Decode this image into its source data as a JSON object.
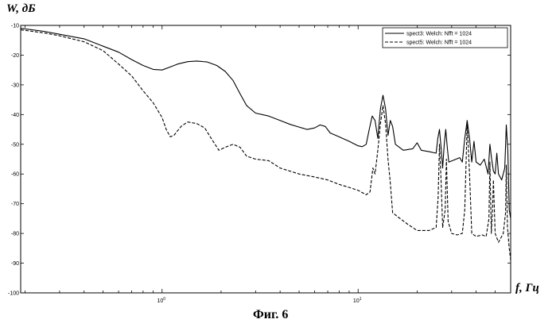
{
  "chart_data": {
    "type": "line",
    "ylabel": "W, дБ",
    "xlabel": "f, Гц",
    "caption": "Фиг. 6",
    "xscale": "log",
    "xlim": [
      0.19,
      60
    ],
    "ylim": [
      -100,
      -10
    ],
    "grid": false,
    "legend_position": "top-right",
    "yticks": [
      -10,
      -20,
      -30,
      -40,
      -50,
      -60,
      -70,
      -80,
      -90,
      -100
    ],
    "ytick_labels": [
      "-10",
      "-20",
      "-30",
      "-40",
      "-50",
      "-60",
      "-70",
      "-80",
      "-90",
      "-100"
    ],
    "xticks": [
      1,
      10
    ],
    "xtick_base": "10",
    "xtick_exponents": [
      "0",
      "1"
    ],
    "series": [
      {
        "name": "spect3: Welch: Nfft = 1024",
        "style": "solid",
        "color": "#000000",
        "points": [
          [
            0.19,
            -11
          ],
          [
            0.25,
            -12
          ],
          [
            0.3,
            -13
          ],
          [
            0.4,
            -14.5
          ],
          [
            0.5,
            -17
          ],
          [
            0.6,
            -19
          ],
          [
            0.7,
            -21.5
          ],
          [
            0.8,
            -23.5
          ],
          [
            0.9,
            -24.8
          ],
          [
            1.0,
            -25
          ],
          [
            1.1,
            -24
          ],
          [
            1.2,
            -23
          ],
          [
            1.35,
            -22.2
          ],
          [
            1.5,
            -22
          ],
          [
            1.7,
            -22.3
          ],
          [
            1.9,
            -23.5
          ],
          [
            2.1,
            -25.5
          ],
          [
            2.3,
            -28.5
          ],
          [
            2.5,
            -33
          ],
          [
            2.7,
            -37
          ],
          [
            3.0,
            -39.5
          ],
          [
            3.5,
            -40.5
          ],
          [
            4.0,
            -42
          ],
          [
            4.5,
            -43.3
          ],
          [
            5.0,
            -44.2
          ],
          [
            5.5,
            -45
          ],
          [
            6.0,
            -44.5
          ],
          [
            6.4,
            -43.5
          ],
          [
            6.8,
            -44
          ],
          [
            7.2,
            -46.2
          ],
          [
            8.0,
            -47.5
          ],
          [
            9.0,
            -49
          ],
          [
            10,
            -50.5
          ],
          [
            10.5,
            -50.8
          ],
          [
            11,
            -50
          ],
          [
            11.4,
            -45
          ],
          [
            11.8,
            -40.5
          ],
          [
            12.2,
            -42
          ],
          [
            12.6,
            -48
          ],
          [
            13.0,
            -38
          ],
          [
            13.4,
            -33.5
          ],
          [
            13.8,
            -38
          ],
          [
            14.2,
            -47
          ],
          [
            14.6,
            -42
          ],
          [
            15.0,
            -44
          ],
          [
            15.5,
            -50
          ],
          [
            17,
            -52
          ],
          [
            19,
            -51.5
          ],
          [
            20,
            -49.5
          ],
          [
            21,
            -52
          ],
          [
            23,
            -52.5
          ],
          [
            25,
            -53
          ],
          [
            25.5,
            -48
          ],
          [
            26,
            -45
          ],
          [
            26.5,
            -51
          ],
          [
            27,
            -58
          ],
          [
            27.5,
            -50
          ],
          [
            28,
            -45
          ],
          [
            28.5,
            -51
          ],
          [
            29,
            -56
          ],
          [
            33,
            -54.5
          ],
          [
            34,
            -56
          ],
          [
            35,
            -48
          ],
          [
            36,
            -42
          ],
          [
            37,
            -48
          ],
          [
            38,
            -56
          ],
          [
            39,
            -49
          ],
          [
            40,
            -56
          ],
          [
            42,
            -57
          ],
          [
            44,
            -55
          ],
          [
            46,
            -60
          ],
          [
            47,
            -50
          ],
          [
            48,
            -55
          ],
          [
            49,
            -59
          ],
          [
            50,
            -60
          ],
          [
            51,
            -53
          ],
          [
            52,
            -60
          ],
          [
            54,
            -62
          ],
          [
            56,
            -58
          ],
          [
            57,
            -43.5
          ],
          [
            58,
            -52
          ],
          [
            59,
            -72
          ],
          [
            60,
            -75
          ]
        ]
      },
      {
        "name": "spect5: Welch: Nfft = 1024",
        "style": "dashed",
        "color": "#000000",
        "points": [
          [
            0.19,
            -11.5
          ],
          [
            0.25,
            -12.5
          ],
          [
            0.3,
            -13.5
          ],
          [
            0.4,
            -15.5
          ],
          [
            0.5,
            -18.5
          ],
          [
            0.6,
            -23
          ],
          [
            0.7,
            -27
          ],
          [
            0.8,
            -32
          ],
          [
            0.9,
            -36
          ],
          [
            1.0,
            -41
          ],
          [
            1.05,
            -45
          ],
          [
            1.1,
            -47.5
          ],
          [
            1.15,
            -47
          ],
          [
            1.25,
            -44
          ],
          [
            1.35,
            -42.5
          ],
          [
            1.5,
            -43
          ],
          [
            1.65,
            -44.5
          ],
          [
            1.8,
            -48.5
          ],
          [
            1.95,
            -52
          ],
          [
            2.1,
            -51
          ],
          [
            2.3,
            -50
          ],
          [
            2.5,
            -51
          ],
          [
            2.7,
            -54
          ],
          [
            3.0,
            -55
          ],
          [
            3.5,
            -55.5
          ],
          [
            4.0,
            -58
          ],
          [
            5,
            -60
          ],
          [
            6,
            -61
          ],
          [
            7,
            -62
          ],
          [
            8,
            -63.5
          ],
          [
            9,
            -64.5
          ],
          [
            10,
            -65.5
          ],
          [
            11,
            -67
          ],
          [
            11.5,
            -66
          ],
          [
            11.9,
            -58
          ],
          [
            12.2,
            -60
          ],
          [
            12.6,
            -52
          ],
          [
            13.0,
            -43
          ],
          [
            13.4,
            -37
          ],
          [
            13.8,
            -43
          ],
          [
            14.2,
            -55
          ],
          [
            14.6,
            -63
          ],
          [
            15.0,
            -73
          ],
          [
            16,
            -74.5
          ],
          [
            18,
            -77
          ],
          [
            20,
            -79
          ],
          [
            23,
            -79
          ],
          [
            25,
            -78
          ],
          [
            25.6,
            -68
          ],
          [
            26,
            -50
          ],
          [
            26.5,
            -62
          ],
          [
            27,
            -78
          ],
          [
            27.8,
            -72
          ],
          [
            28.2,
            -55
          ],
          [
            28.8,
            -76
          ],
          [
            30,
            -80
          ],
          [
            32,
            -80.5
          ],
          [
            34,
            -80
          ],
          [
            35,
            -72
          ],
          [
            36,
            -43
          ],
          [
            37,
            -60
          ],
          [
            38,
            -80
          ],
          [
            40,
            -81
          ],
          [
            43,
            -80.5
          ],
          [
            45,
            -81
          ],
          [
            46.5,
            -75
          ],
          [
            47,
            -56
          ],
          [
            47.8,
            -80
          ],
          [
            48.5,
            -72
          ],
          [
            49,
            -62
          ],
          [
            50,
            -80
          ],
          [
            52,
            -83
          ],
          [
            54,
            -81
          ],
          [
            55,
            -80
          ],
          [
            56.5,
            -73
          ],
          [
            57,
            -57
          ],
          [
            57.8,
            -78
          ],
          [
            59,
            -85
          ],
          [
            60,
            -89
          ]
        ]
      }
    ]
  }
}
